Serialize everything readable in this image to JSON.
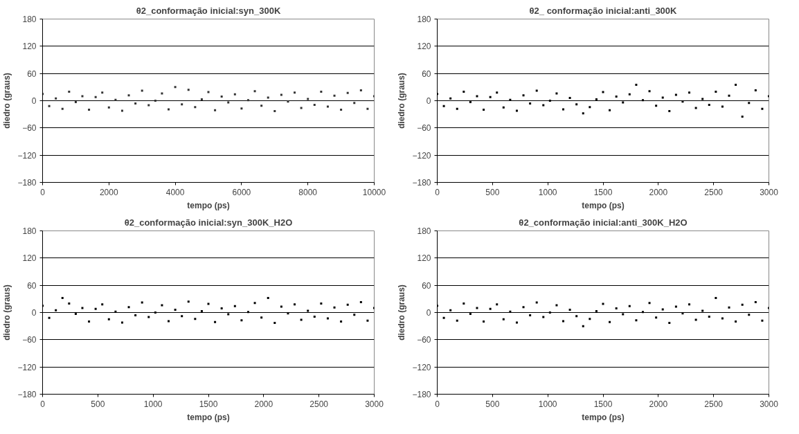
{
  "chart_data": [
    {
      "type": "scatter",
      "title": "θ2_conformação inicial:syn_300K",
      "xlabel": "tempo (ps)",
      "ylabel": "diedro (graus)",
      "xlim": [
        0,
        10000
      ],
      "xticks": [
        0,
        2000,
        4000,
        6000,
        8000,
        10000
      ],
      "ylim": [
        -180,
        180
      ],
      "yticks": [
        -180,
        -120,
        -60,
        0,
        60,
        120,
        180
      ],
      "grid": "y",
      "marker": "square",
      "series": [
        {
          "color": "#333333",
          "x": [
            0,
            200,
            400,
            600,
            800,
            1000,
            1200,
            1400,
            1600,
            1800,
            2000,
            2200,
            2400,
            2600,
            2800,
            3000,
            3200,
            3400,
            3600,
            3800,
            4000,
            4200,
            4400,
            4600,
            4800,
            5000,
            5200,
            5400,
            5600,
            5800,
            6000,
            6200,
            6400,
            6600,
            6800,
            7000,
            7200,
            7400,
            7600,
            7800,
            8000,
            8200,
            8400,
            8600,
            8800,
            9000,
            9200,
            9400,
            9600,
            9800,
            10000
          ],
          "values": [
            15,
            -12,
            5,
            -18,
            20,
            -3,
            10,
            -20,
            8,
            18,
            -15,
            2,
            -22,
            12,
            -6,
            22,
            -10,
            0,
            16,
            -19,
            30,
            -8,
            24,
            -14,
            3,
            19,
            -21,
            9,
            -4,
            14,
            -17,
            1,
            21,
            -11,
            7,
            -23,
            13,
            -2,
            18,
            -16,
            4,
            -9,
            20,
            -13,
            11,
            -20,
            17,
            -5,
            23,
            -18,
            10
          ]
        }
      ]
    },
    {
      "type": "scatter",
      "title": "θ2_ conformação inicial:anti_300K",
      "xlabel": "tempo (ps)",
      "ylabel": "diedro (graus)",
      "xlim": [
        0,
        3000
      ],
      "xticks": [
        0,
        500,
        1000,
        1500,
        2000,
        2500,
        3000
      ],
      "ylim": [
        -180,
        180
      ],
      "yticks": [
        -180,
        -120,
        -60,
        0,
        60,
        120,
        180
      ],
      "grid": "y",
      "marker": "square",
      "series": [
        {
          "color": "#000000",
          "x": [
            0,
            60,
            120,
            180,
            240,
            300,
            360,
            420,
            480,
            540,
            600,
            660,
            720,
            780,
            840,
            900,
            960,
            1020,
            1080,
            1140,
            1200,
            1260,
            1320,
            1380,
            1440,
            1500,
            1560,
            1620,
            1680,
            1740,
            1800,
            1860,
            1920,
            1980,
            2040,
            2100,
            2160,
            2220,
            2280,
            2340,
            2400,
            2460,
            2520,
            2580,
            2640,
            2700,
            2760,
            2820,
            2880,
            2940,
            3000
          ],
          "values": [
            15,
            -12,
            5,
            -18,
            20,
            -3,
            10,
            -20,
            8,
            18,
            -15,
            2,
            -22,
            12,
            -6,
            22,
            -10,
            0,
            16,
            -19,
            6,
            -8,
            -28,
            -14,
            3,
            19,
            -21,
            9,
            -4,
            14,
            35,
            1,
            21,
            -11,
            7,
            -23,
            13,
            -2,
            18,
            -16,
            4,
            -9,
            20,
            -13,
            11,
            35,
            -35,
            -5,
            23,
            -18,
            10
          ]
        }
      ]
    },
    {
      "type": "scatter",
      "title": "θ2_conformação inicial:syn_300K_H2O",
      "xlabel": "tempo (ps)",
      "ylabel": "diedro (graus)",
      "xlim": [
        0,
        3000
      ],
      "xticks": [
        0,
        500,
        1000,
        1500,
        2000,
        2500,
        3000
      ],
      "ylim": [
        -180,
        180
      ],
      "yticks": [
        -180,
        -120,
        -60,
        0,
        60,
        120,
        180
      ],
      "grid": "y",
      "marker": "square",
      "series": [
        {
          "color": "#000000",
          "x": [
            0,
            60,
            120,
            180,
            240,
            300,
            360,
            420,
            480,
            540,
            600,
            660,
            720,
            780,
            840,
            900,
            960,
            1020,
            1080,
            1140,
            1200,
            1260,
            1320,
            1380,
            1440,
            1500,
            1560,
            1620,
            1680,
            1740,
            1800,
            1860,
            1920,
            1980,
            2040,
            2100,
            2160,
            2220,
            2280,
            2340,
            2400,
            2460,
            2520,
            2580,
            2640,
            2700,
            2760,
            2820,
            2880,
            2940,
            3000
          ],
          "values": [
            15,
            -12,
            5,
            32,
            20,
            -3,
            10,
            -20,
            8,
            18,
            -15,
            2,
            -22,
            12,
            -6,
            22,
            -10,
            0,
            16,
            -19,
            6,
            -8,
            24,
            -14,
            3,
            19,
            -21,
            9,
            -4,
            14,
            -17,
            1,
            21,
            -11,
            32,
            -23,
            13,
            -2,
            18,
            -16,
            4,
            -9,
            20,
            -13,
            11,
            -20,
            17,
            -5,
            23,
            -18,
            10
          ]
        }
      ]
    },
    {
      "type": "scatter",
      "title": "θ2_conformação inicial:anti_300K_H2O",
      "xlabel": "tempo (ps)",
      "ylabel": "diedro (graus)",
      "xlim": [
        0,
        3000
      ],
      "xticks": [
        0,
        500,
        1000,
        1500,
        2000,
        2500,
        3000
      ],
      "ylim": [
        -180,
        180
      ],
      "yticks": [
        -180,
        -120,
        -60,
        0,
        60,
        120,
        180
      ],
      "grid": "y",
      "marker": "square",
      "series": [
        {
          "color": "#000000",
          "x": [
            0,
            60,
            120,
            180,
            240,
            300,
            360,
            420,
            480,
            540,
            600,
            660,
            720,
            780,
            840,
            900,
            960,
            1020,
            1080,
            1140,
            1200,
            1260,
            1320,
            1380,
            1440,
            1500,
            1560,
            1620,
            1680,
            1740,
            1800,
            1860,
            1920,
            1980,
            2040,
            2100,
            2160,
            2220,
            2280,
            2340,
            2400,
            2460,
            2520,
            2580,
            2640,
            2700,
            2760,
            2820,
            2880,
            2940,
            3000
          ],
          "values": [
            15,
            -12,
            5,
            -18,
            20,
            -3,
            10,
            -20,
            8,
            18,
            -15,
            2,
            -22,
            12,
            -6,
            22,
            -10,
            0,
            16,
            -19,
            6,
            -8,
            -30,
            -14,
            3,
            19,
            -21,
            9,
            -4,
            14,
            -17,
            1,
            21,
            -11,
            7,
            -23,
            13,
            -2,
            18,
            -16,
            4,
            -9,
            32,
            -13,
            11,
            -20,
            17,
            -5,
            23,
            -18,
            10
          ]
        }
      ]
    }
  ]
}
